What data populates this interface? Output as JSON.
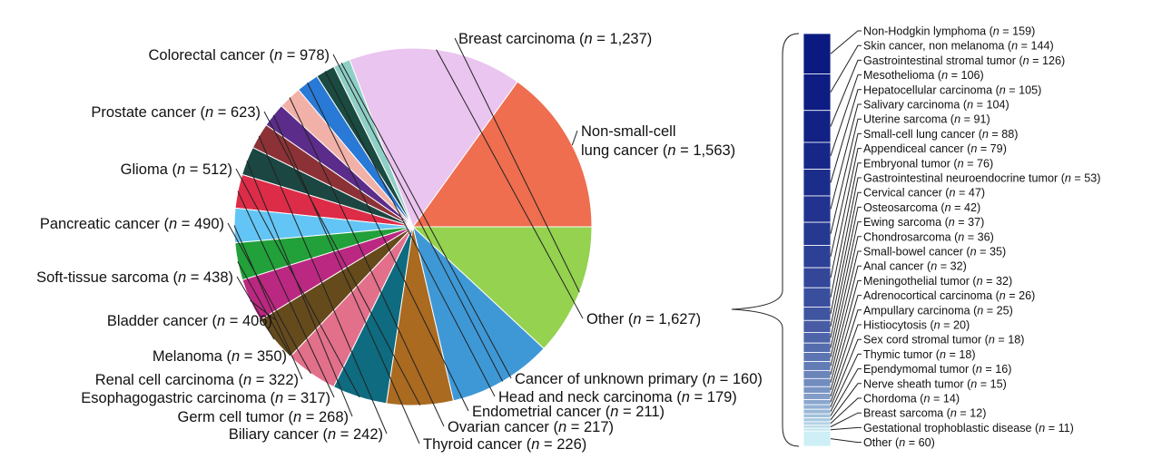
{
  "chart_data": [
    {
      "type": "pie",
      "slices": [
        {
          "label": "Non-small-cell lung cancer",
          "n": "1,563",
          "value": 1563,
          "color": "#ee6e4f"
        },
        {
          "label": "Other",
          "n": "1,627",
          "value": 1627,
          "color": "#eac5ef"
        },
        {
          "label": "Cancer of unknown primary",
          "n": "160",
          "value": 160,
          "color": "#8ecfc6"
        },
        {
          "label": "Head and neck carcinoma",
          "n": "179",
          "value": 179,
          "color": "#1a4a40"
        },
        {
          "label": "Endometrial cancer",
          "n": "211",
          "value": 211,
          "color": "#2979d6"
        },
        {
          "label": "Ovarian cancer",
          "n": "217",
          "value": 217,
          "color": "#f2b1a8"
        },
        {
          "label": "Thyroid cancer",
          "n": "226",
          "value": 226,
          "color": "#5b2c8a"
        },
        {
          "label": "Biliary cancer",
          "n": "242",
          "value": 242,
          "color": "#8c3236"
        },
        {
          "label": "Germ cell tumor",
          "n": "268",
          "value": 268,
          "color": "#1b4641"
        },
        {
          "label": "Esophagogastric carcinoma",
          "n": "317",
          "value": 317,
          "color": "#dd2c48"
        },
        {
          "label": "Renal cell carcinoma",
          "n": "322",
          "value": 322,
          "color": "#63c5f5"
        },
        {
          "label": "Melanoma",
          "n": "350",
          "value": 350,
          "color": "#22a03a"
        },
        {
          "label": "Bladder cancer",
          "n": "406",
          "value": 406,
          "color": "#bb2881"
        },
        {
          "label": "Soft-tissue sarcoma",
          "n": "438",
          "value": 438,
          "color": "#654a1c"
        },
        {
          "label": "Pancreatic cancer",
          "n": "490",
          "value": 490,
          "color": "#e2708b"
        },
        {
          "label": "Glioma",
          "n": "512",
          "value": 512,
          "color": "#0e6b80"
        },
        {
          "label": "Prostate cancer",
          "n": "623",
          "value": 623,
          "color": "#aa6a20"
        },
        {
          "label": "Colorectal cancer",
          "n": "978",
          "value": 978,
          "color": "#3f98d6"
        },
        {
          "label": "Breast carcinoma",
          "n": "1,237",
          "value": 1237,
          "color": "#94d24f"
        }
      ]
    },
    {
      "type": "bar",
      "stacked": true,
      "orientation": "vertical",
      "gradient_colors": [
        "#0a1a80",
        "#cdeff5"
      ],
      "segments": [
        {
          "label": "Non-Hodgkin lymphoma",
          "n": "159",
          "value": 159
        },
        {
          "label": "Skin cancer, non melanoma",
          "n": "144",
          "value": 144
        },
        {
          "label": "Gastrointestinal stromal tumor",
          "n": "126",
          "value": 126
        },
        {
          "label": "Mesothelioma",
          "n": "106",
          "value": 106
        },
        {
          "label": "Hepatocellular carcinoma",
          "n": "105",
          "value": 105
        },
        {
          "label": "Salivary carcinoma",
          "n": "104",
          "value": 104
        },
        {
          "label": "Uterine sarcoma",
          "n": "91",
          "value": 91
        },
        {
          "label": "Small-cell lung cancer",
          "n": "88",
          "value": 88
        },
        {
          "label": "Appendiceal cancer",
          "n": "79",
          "value": 79
        },
        {
          "label": "Embryonal tumor",
          "n": "76",
          "value": 76
        },
        {
          "label": "Gastrointestinal neuroendocrine tumor",
          "n": "53",
          "value": 53
        },
        {
          "label": "Cervical cancer",
          "n": "47",
          "value": 47
        },
        {
          "label": "Osteosarcoma",
          "n": "42",
          "value": 42
        },
        {
          "label": "Ewing sarcoma",
          "n": "37",
          "value": 37
        },
        {
          "label": "Chondrosarcoma",
          "n": "36",
          "value": 36
        },
        {
          "label": "Small-bowel cancer",
          "n": "35",
          "value": 35
        },
        {
          "label": "Anal cancer",
          "n": "32",
          "value": 32
        },
        {
          "label": "Meningothelial tumor",
          "n": "32",
          "value": 32
        },
        {
          "label": "Adrenocortical carcinoma",
          "n": "26",
          "value": 26
        },
        {
          "label": "Ampullary carcinoma",
          "n": "25",
          "value": 25
        },
        {
          "label": "Histiocytosis",
          "n": "20",
          "value": 20
        },
        {
          "label": "Sex cord stromal tumor",
          "n": "18",
          "value": 18
        },
        {
          "label": "Thymic tumor",
          "n": "18",
          "value": 18
        },
        {
          "label": "Ependymomal tumor",
          "n": "16",
          "value": 16
        },
        {
          "label": "Nerve sheath tumor",
          "n": "15",
          "value": 15
        },
        {
          "label": "Chordoma",
          "n": "14",
          "value": 14
        },
        {
          "label": "Breast sarcoma",
          "n": "12",
          "value": 12
        },
        {
          "label": "Gestational trophoblastic disease",
          "n": "11",
          "value": 11
        },
        {
          "label": "Other",
          "n": "60",
          "value": 60
        }
      ]
    }
  ]
}
